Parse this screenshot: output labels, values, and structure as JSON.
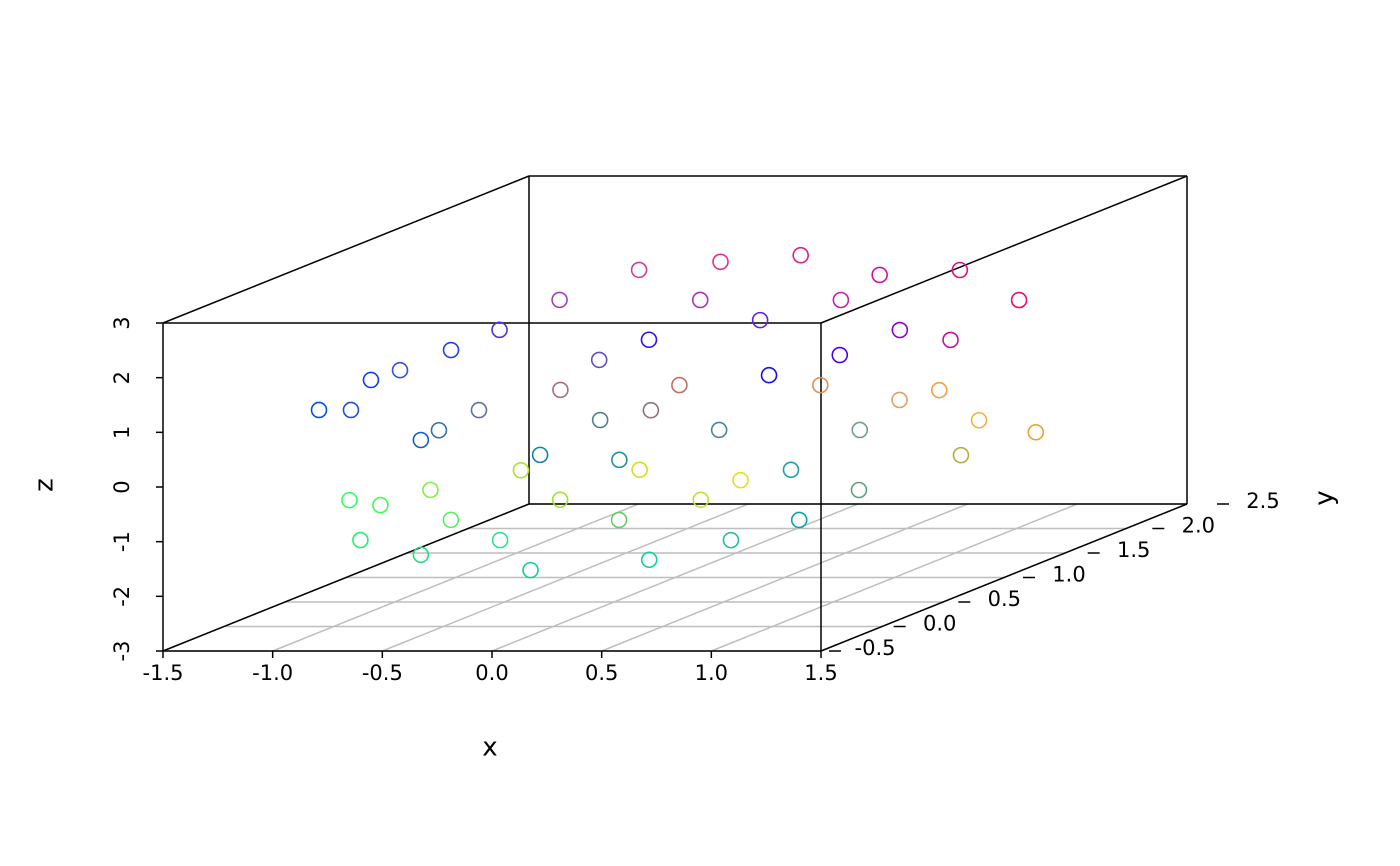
{
  "chart_data": {
    "type": "scatter3d",
    "x_label": "x",
    "y_label": "y",
    "z_label": "z",
    "xlim": [
      -1.5,
      1.5
    ],
    "ylim": [
      -0.5,
      2.5
    ],
    "zlim": [
      -3,
      3
    ],
    "xticks": [
      -1.5,
      {
        "value": -1,
        "label": "-1.0"
      },
      -0.5,
      {
        "value": 0,
        "label": "0.0"
      },
      0.5,
      {
        "value": 1,
        "label": "1.0"
      },
      1.5
    ],
    "yticks": [
      -0.5,
      {
        "value": 0,
        "label": "0.0"
      },
      0.5,
      {
        "value": 1,
        "label": "1.0"
      },
      1.5,
      {
        "value": 2,
        "label": "2.0"
      },
      2.5
    ],
    "zticks": [
      -3,
      -2,
      -1,
      0,
      1,
      2,
      3
    ],
    "grid": true,
    "x": [
      -0.9,
      -0.83,
      -0.38,
      -0.91,
      -0.8,
      -0.86,
      -0.72,
      -0.46,
      -0.15,
      0.21,
      0.52,
      0.79,
      0.58,
      0.11,
      -0.23,
      0.54,
      0.64,
      -0.3,
      0.02,
      0.44,
      0.76,
      1.2,
      -0.56,
      -0.23,
      0.09,
      0.62,
      0.97,
      -0.17,
      0.08,
      0.64,
      -0.65,
      -0.6,
      -0.38,
      -0.67,
      -0.48,
      -0.13,
      0.12,
      -0.05,
      0.19,
      0.55,
      0.41,
      0.7,
      0.9,
      -0.62,
      -0.19,
      0.95,
      -0.41,
      0.34,
      -0.92,
      -0.29,
      -0.33,
      0.2,
      0.7,
      0.69,
      0.83,
      -0.11,
      -0.81,
      -0.52
    ],
    "y": [
      -0.3,
      0.0,
      -0.4,
      0.8,
      1.0,
      1.6,
      2.0,
      2.2,
      2.3,
      2.3,
      2.4,
      2.4,
      1.8,
      1.5,
      1.2,
      0.8,
      1.2,
      0.6,
      1.0,
      1.4,
      1.8,
      1.8,
      0.4,
      0.8,
      1.2,
      1.4,
      1.6,
      0.2,
      0.4,
      0.8,
      -0.5,
      -0.5,
      -0.4,
      0.2,
      0.6,
      -0.2,
      -0.4,
      0.8,
      0.2,
      -0.2,
      0.8,
      0.2,
      0.4,
      -0.3,
      0.4,
      0.8,
      -0.1,
      0.6,
      0.4,
      0.9,
      1.8,
      2.0,
      2.0,
      1.6,
      2.0,
      1.0,
      -0.2,
      0.0
    ],
    "z": [
      1.23,
      1.51,
      0.77,
      1.34,
      1.53,
      1.54,
      1.73,
      1.7,
      1.73,
      1.37,
      1.37,
      0.82,
      0.81,
      1.26,
      1.17,
      0.88,
      0.89,
      0.79,
      0.52,
      0.16,
      -0.29,
      -1.06,
      0.6,
      0.06,
      -0.48,
      -0.66,
      -1.3,
      -0.04,
      -0.31,
      -0.85,
      -0.24,
      -0.97,
      -1.33,
      -0.68,
      -0.68,
      -1.24,
      -1.61,
      -0.85,
      -1.23,
      -1.6,
      -1.04,
      -1.6,
      -1.41,
      -0.51,
      -1.04,
      -1.22,
      -0.96,
      -1.22,
      1.33,
      1.07,
      1.36,
      1.18,
      0.45,
      -0.29,
      -1.02,
      0.06,
      1.14,
      0.59
    ],
    "colors": [
      "#0050e0",
      "#1040f0",
      "#1060c0",
      "#2040e8",
      "#5030d0",
      "#a040c0",
      "#d04090",
      "#e0308a",
      "#e02080",
      "#d010a0",
      "#e01080",
      "#e01070",
      "#9000d0",
      "#6020e0",
      "#3010f0",
      "#1010f0",
      "#5000e0",
      "#a07080",
      "#c07060",
      "#e09050",
      "#f0a040",
      "#f0a030",
      "#6070a0",
      "#508090",
      "#408890",
      "#70a080",
      "#b0b040",
      "#1080b0",
      "#2090a0",
      "#20a0a0",
      "#30ff60",
      "#20f070",
      "#20e080",
      "#80f040",
      "#b0e030",
      "#30e090",
      "#10d090",
      "#d0e020",
      "#60d060",
      "#10d0a0",
      "#e0e020",
      "#20c0a0",
      "#10a0b0",
      "#40ff50",
      "#a0e030",
      "#60a080",
      "#50f060",
      "#c0e030",
      "#3050e0",
      "#6050c0",
      "#b030b0",
      "#c020b0",
      "#c010a0",
      "#e0a060",
      "#f0b040",
      "#907080",
      "#2050d0",
      "#3070b0"
    ]
  }
}
